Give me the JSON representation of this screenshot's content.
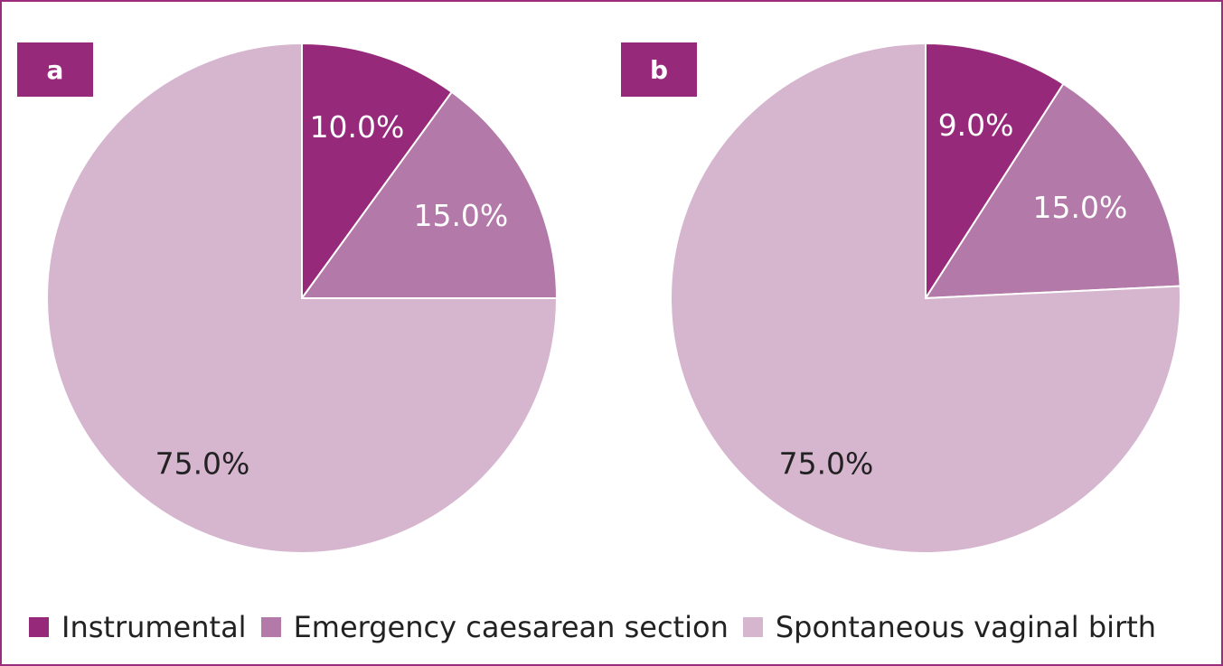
{
  "legend": {
    "items": [
      {
        "label": "Instrumental",
        "color": "#96297a"
      },
      {
        "label": "Emergency caesarean section",
        "color": "#b379a8"
      },
      {
        "label": "Spontaneous vaginal birth",
        "color": "#d6b5cf"
      }
    ]
  },
  "chart_data": [
    {
      "type": "pie",
      "panel_label": "a",
      "categories": [
        "Instrumental",
        "Emergency caesarean section",
        "Spontaneous vaginal birth"
      ],
      "values": [
        10.0,
        15.0,
        75.0
      ],
      "labels": [
        "10.0%",
        "15.0%",
        "75.0%"
      ],
      "colors": [
        "#96297a",
        "#b379a8",
        "#d6b5cf"
      ],
      "label_colors": [
        "#ffffff",
        "#ffffff",
        "#222222"
      ],
      "start_angle": "12 o'clock, clockwise"
    },
    {
      "type": "pie",
      "panel_label": "b",
      "categories": [
        "Instrumental",
        "Emergency caesarean section",
        "Spontaneous vaginal birth"
      ],
      "values": [
        9.0,
        15.0,
        75.0
      ],
      "labels": [
        "9.0%",
        "15.0%",
        "75.0%"
      ],
      "colors": [
        "#96297a",
        "#b379a8",
        "#d6b5cf"
      ],
      "label_colors": [
        "#ffffff",
        "#ffffff",
        "#222222"
      ],
      "start_angle": "12 o'clock, clockwise"
    }
  ]
}
